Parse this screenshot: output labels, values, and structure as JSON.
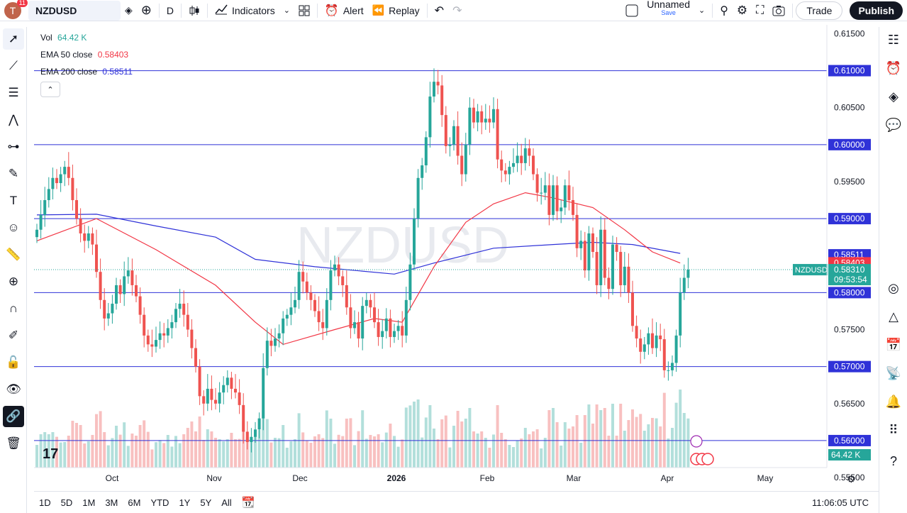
{
  "header": {
    "avatar_letter": "T",
    "notification_count": "11",
    "symbol": "NZDUSD",
    "interval": "D",
    "indicators_label": "Indicators",
    "alert_label": "Alert",
    "replay_label": "Replay",
    "layout_name": "Unnamed",
    "save_label": "Save",
    "trade_label": "Trade",
    "publish_label": "Publish"
  },
  "legend": {
    "vol_label": "Vol",
    "vol_value": "64.42 K",
    "ema50_label": "EMA 50 close",
    "ema50_value": "0.58403",
    "ema200_label": "EMA 200 close",
    "ema200_value": "0.58511"
  },
  "chart_data": {
    "type": "candlestick",
    "symbol": "NZDUSD",
    "watermark": "NZDUSD",
    "interval": "D",
    "y_range": [
      0.5575,
      0.616
    ],
    "y_ticks": [
      "0.61500",
      "0.61000",
      "0.60500",
      "0.60000",
      "0.59500",
      "0.59000",
      "0.58500",
      "0.58000",
      "0.57500",
      "0.57000",
      "0.56500",
      "0.56000",
      "0.55500"
    ],
    "x_ticks": [
      "Oct",
      "Nov",
      "Dec",
      "2026",
      "Feb",
      "Mar",
      "Apr",
      "May"
    ],
    "horizontal_levels": [
      0.61,
      0.6,
      0.59,
      0.58,
      0.57,
      0.56
    ],
    "level_labels": [
      "0.61000",
      "0.60000",
      "0.59000",
      "0.58000",
      "0.57000",
      "0.56000"
    ],
    "price_labels": {
      "ema200": "0.58511",
      "ema50": "0.58403",
      "last_symbol": "NZDUSD",
      "last_price": "0.58310",
      "countdown": "09:53:54",
      "volume": "64.42 K"
    },
    "colors": {
      "up": "#26a69a",
      "down": "#ef5350",
      "ema50": "#f23645",
      "ema200": "#2f32d8",
      "level": "#2f32d8",
      "vol_up": "#b2dfdb",
      "vol_down": "#f8c0c0"
    },
    "closes": [
      0.5885,
      0.5905,
      0.5925,
      0.594,
      0.5955,
      0.5948,
      0.596,
      0.597,
      0.5955,
      0.5925,
      0.59,
      0.588,
      0.587,
      0.588,
      0.5865,
      0.5828,
      0.579,
      0.5765,
      0.5772,
      0.5785,
      0.581,
      0.5798,
      0.5822,
      0.583,
      0.581,
      0.5795,
      0.577,
      0.5742,
      0.573,
      0.5727,
      0.5736,
      0.5745,
      0.5742,
      0.5752,
      0.576,
      0.5778,
      0.5785,
      0.577,
      0.575,
      0.5725,
      0.57,
      0.566,
      0.565,
      0.567,
      0.5655,
      0.565,
      0.5665,
      0.5675,
      0.5685,
      0.567,
      0.5665,
      0.5648,
      0.5612,
      0.5598,
      0.5605,
      0.5615,
      0.563,
      0.5698,
      0.5735,
      0.5728,
      0.5738,
      0.5745,
      0.5765,
      0.577,
      0.578,
      0.579,
      0.5828,
      0.5815,
      0.58,
      0.579,
      0.5775,
      0.576,
      0.5752,
      0.579,
      0.583,
      0.5838,
      0.5822,
      0.581,
      0.578,
      0.5752,
      0.576,
      0.5738,
      0.5782,
      0.579,
      0.578,
      0.576,
      0.574,
      0.5748,
      0.5765,
      0.574,
      0.5748,
      0.5755,
      0.5742,
      0.579,
      0.5838,
      0.59,
      0.5955,
      0.5972,
      0.601,
      0.6065,
      0.6085,
      0.608,
      0.604,
      0.5998,
      0.6,
      0.6025,
      0.5985,
      0.596,
      0.6,
      0.605,
      0.603,
      0.6045,
      0.603,
      0.6035,
      0.603,
      0.6048,
      0.598,
      0.5965,
      0.596,
      0.597,
      0.5975,
      0.5985,
      0.5975,
      0.5995,
      0.5985,
      0.596,
      0.5935,
      0.5935,
      0.5945,
      0.5905,
      0.5945,
      0.591,
      0.5915,
      0.5945,
      0.5925,
      0.5905,
      0.586,
      0.587,
      0.583,
      0.588,
      0.5855,
      0.581,
      0.5885,
      0.582,
      0.5805,
      0.5865,
      0.5855,
      0.581,
      0.5835,
      0.58,
      0.5755,
      0.5738,
      0.572,
      0.573,
      0.5745,
      0.5725,
      0.5742,
      0.5737,
      0.5695,
      0.5695,
      0.5705,
      0.5742,
      0.58,
      0.582,
      0.5831
    ],
    "opens_note": "each candle opens at the previous close",
    "ema50": {
      "start": 0.587,
      "points": [
        [
          0,
          0.587
        ],
        [
          15,
          0.59
        ],
        [
          30,
          0.5858
        ],
        [
          45,
          0.581
        ],
        [
          55,
          0.576
        ],
        [
          62,
          0.573
        ],
        [
          75,
          0.575
        ],
        [
          85,
          0.5765
        ],
        [
          92,
          0.576
        ],
        [
          100,
          0.5835
        ],
        [
          108,
          0.5895
        ],
        [
          115,
          0.592
        ],
        [
          123,
          0.5935
        ],
        [
          130,
          0.5928
        ],
        [
          140,
          0.5915
        ],
        [
          148,
          0.5885
        ],
        [
          155,
          0.5855
        ],
        [
          162,
          0.584
        ]
      ]
    },
    "ema200": {
      "points": [
        [
          0,
          0.5905
        ],
        [
          15,
          0.5906
        ],
        [
          30,
          0.589
        ],
        [
          45,
          0.5875
        ],
        [
          55,
          0.5845
        ],
        [
          70,
          0.5835
        ],
        [
          90,
          0.5825
        ],
        [
          100,
          0.584
        ],
        [
          115,
          0.586
        ],
        [
          130,
          0.5865
        ],
        [
          140,
          0.5868
        ],
        [
          150,
          0.5865
        ],
        [
          162,
          0.5853
        ]
      ]
    }
  },
  "bottom": {
    "ranges": [
      "1D",
      "5D",
      "1M",
      "3M",
      "6M",
      "YTD",
      "1Y",
      "5Y",
      "All"
    ],
    "clock": "11:06:05 UTC"
  }
}
